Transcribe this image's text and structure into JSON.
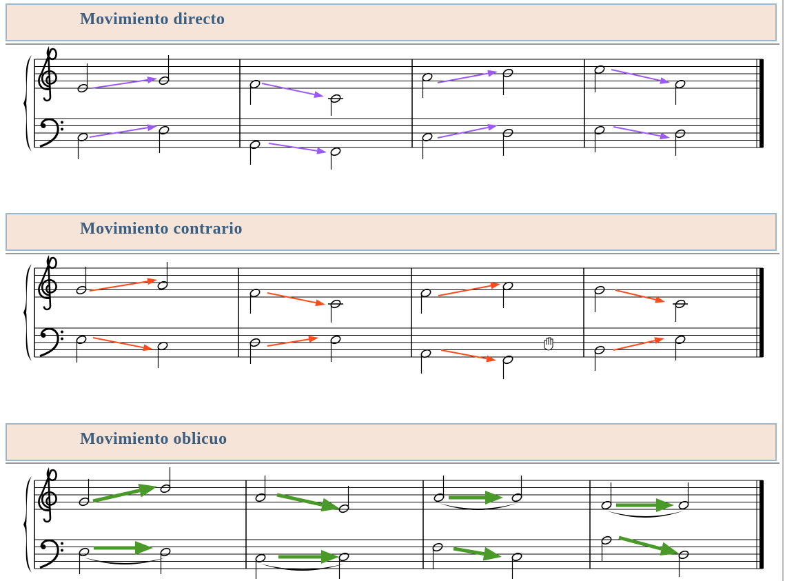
{
  "sections": [
    {
      "title": "Movimiento directo"
    },
    {
      "title": "Movimiento contrario"
    },
    {
      "title": "Movimiento oblicuo"
    }
  ]
}
